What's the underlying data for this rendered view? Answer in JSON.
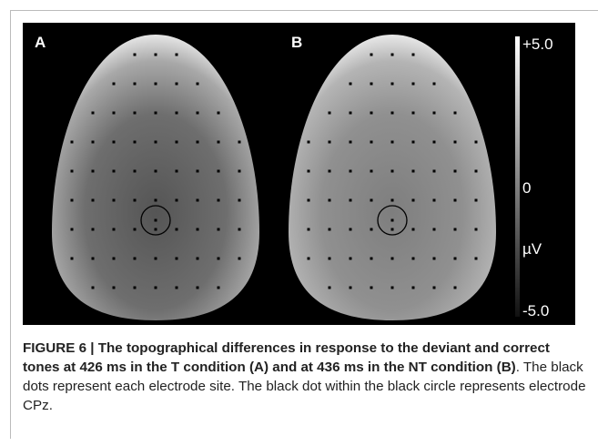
{
  "figure": {
    "panels": [
      {
        "label": "A"
      },
      {
        "label": "B"
      }
    ],
    "colorbar": {
      "top": "+5.0",
      "middle": "0",
      "unit": "µV",
      "bottom": "-5.0"
    },
    "caption": {
      "bold": "FIGURE 6 | The topographical differences in response to the deviant and correct tones at 426 ms in the T condition (A) and at 436 ms in the NT condition (B)",
      "text": ". The black dots represent each electrode site. The black dot within the black circle represents electrode CPz."
    }
  }
}
